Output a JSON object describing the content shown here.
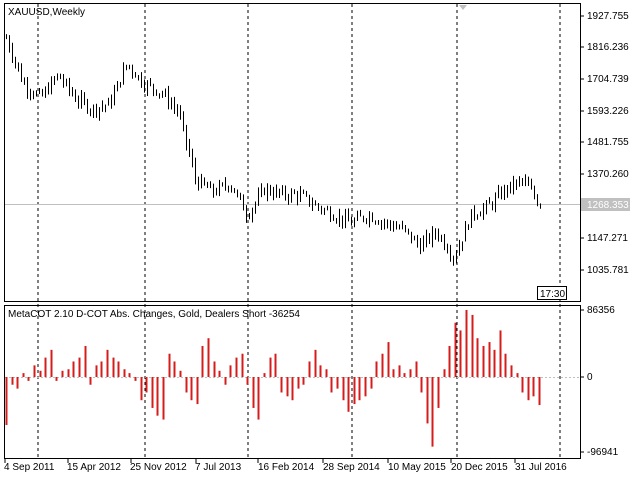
{
  "window": {
    "symbol_title": "XAUUSD,Weekly",
    "period_badge": "17:30"
  },
  "price_pane": {
    "axis_labels": [
      "1927.755",
      "1816.236",
      "1704.739",
      "1593.226",
      "1481.755",
      "1370.260",
      "1258.353",
      "1147.271",
      "1035.781"
    ],
    "current_price_label": "1268.353"
  },
  "indicator_pane": {
    "title": "MetaCOT 2.10 D-COT Abs. Changes, Gold, Dealers Short -36254",
    "axis_labels": [
      "86356",
      "0",
      "-96941"
    ]
  },
  "time_axis": {
    "labels": [
      "4 Sep 2011",
      "15 Apr 2012",
      "25 Nov 2012",
      "7 Jul 2013",
      "16 Feb 2014",
      "28 Sep 2014",
      "10 May 2015",
      "20 Dec 2015",
      "31 Jul 2016"
    ]
  },
  "colors": {
    "background": "#ffffff",
    "candles": "#000000",
    "histogram": "#d41c1c",
    "grid": "#000000",
    "price_line": "#c0c0c0",
    "price_tag": "#c0c0c0"
  },
  "chart_data": [
    {
      "type": "line",
      "name": "XAUUSD Weekly",
      "title": "XAUUSD,Weekly",
      "ylim": [
        1035.781,
        1927.755
      ],
      "current_price": 1268.353,
      "x_tick_labels": [
        "4 Sep 2011",
        "15 Apr 2012",
        "25 Nov 2012",
        "7 Jul 2013",
        "16 Feb 2014",
        "28 Sep 2014",
        "10 May 2015",
        "20 Dec 2015",
        "31 Jul 2016"
      ],
      "x": [
        "2011-08",
        "2011-10",
        "2011-12",
        "2012-02",
        "2012-04",
        "2012-06",
        "2012-08",
        "2012-10",
        "2012-12",
        "2013-02",
        "2013-04",
        "2013-06",
        "2013-08",
        "2013-10",
        "2013-12",
        "2014-02",
        "2014-04",
        "2014-06",
        "2014-08",
        "2014-10",
        "2014-12",
        "2015-02",
        "2015-04",
        "2015-06",
        "2015-08",
        "2015-10",
        "2015-12",
        "2016-02",
        "2016-04",
        "2016-06",
        "2016-08",
        "2016-10"
      ],
      "values": [
        1850,
        1690,
        1640,
        1720,
        1640,
        1600,
        1620,
        1760,
        1690,
        1660,
        1590,
        1350,
        1310,
        1340,
        1230,
        1320,
        1300,
        1300,
        1260,
        1230,
        1200,
        1230,
        1200,
        1180,
        1120,
        1170,
        1080,
        1230,
        1260,
        1320,
        1350,
        1265
      ]
    },
    {
      "type": "bar",
      "name": "Dealers Short",
      "title": "MetaCOT 2.10 D-COT Abs. Changes, Gold, Dealers Short -36254",
      "ylim": [
        -96941,
        86356
      ],
      "last_value": -36254,
      "values": [
        -62000,
        -10000,
        -15000,
        5000,
        -5000,
        15000,
        8000,
        25000,
        35000,
        -5000,
        8000,
        10000,
        20000,
        25000,
        40000,
        -10000,
        15000,
        20000,
        35000,
        25000,
        20000,
        10000,
        5000,
        -5000,
        -30000,
        -20000,
        -40000,
        -50000,
        -55000,
        30000,
        20000,
        8000,
        -20000,
        -30000,
        -35000,
        40000,
        50000,
        20000,
        8000,
        -10000,
        15000,
        25000,
        30000,
        -10000,
        -40000,
        -55000,
        5000,
        25000,
        30000,
        -20000,
        -25000,
        -30000,
        -15000,
        -10000,
        20000,
        35000,
        15000,
        10000,
        -20000,
        -15000,
        -30000,
        -45000,
        -35000,
        -30000,
        -25000,
        -15000,
        20000,
        30000,
        45000,
        10000,
        15000,
        5000,
        10000,
        20000,
        -20000,
        -60000,
        -90000,
        -40000,
        10000,
        40000,
        70000,
        60000,
        86356,
        80000,
        50000,
        40000,
        45000,
        35000,
        60000,
        30000,
        15000,
        5000,
        -20000,
        -30000,
        -25000,
        -36254
      ]
    }
  ]
}
